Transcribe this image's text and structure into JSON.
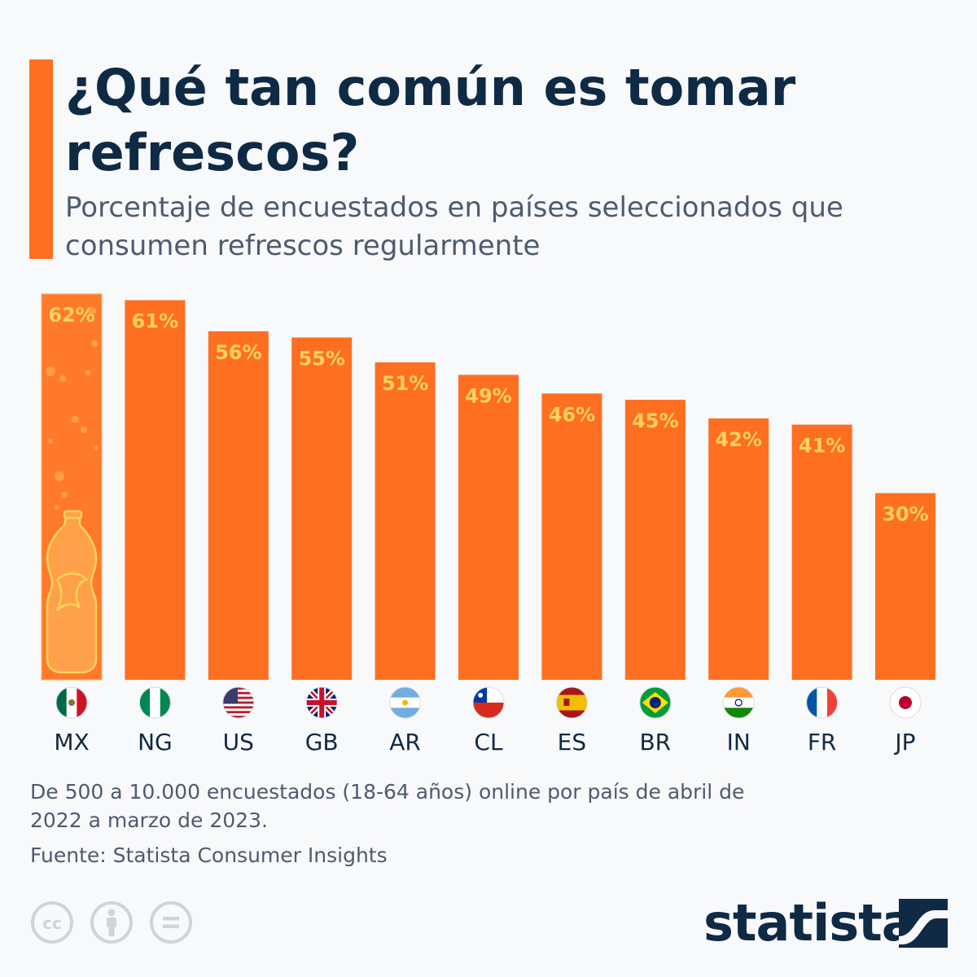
{
  "header": {
    "title": "¿Qué tan común es tomar refrescos?",
    "subtitle": "Porcentaje de encuestados en países seleccionados que consumen refrescos regularmente"
  },
  "chart_data": {
    "type": "bar",
    "categories": [
      "MX",
      "NG",
      "US",
      "GB",
      "AR",
      "CL",
      "ES",
      "BR",
      "IN",
      "FR",
      "JP"
    ],
    "values": [
      62,
      61,
      56,
      55,
      51,
      49,
      46,
      45,
      42,
      41,
      30
    ],
    "value_labels": [
      "62%",
      "61%",
      "56%",
      "55%",
      "51%",
      "49%",
      "46%",
      "45%",
      "42%",
      "41%",
      "30%"
    ],
    "ylim": [
      0,
      62
    ],
    "grid": false,
    "flags": [
      "mexico-flag-icon",
      "nigeria-flag-icon",
      "usa-flag-icon",
      "uk-flag-icon",
      "argentina-flag-icon",
      "chile-flag-icon",
      "spain-flag-icon",
      "brazil-flag-icon",
      "india-flag-icon",
      "france-flag-icon",
      "japan-flag-icon"
    ],
    "colors": {
      "bar": "#ff6f22",
      "bar_highlight": "#ff7a2a",
      "label": "#ffd25a",
      "text": "#0f2a44"
    }
  },
  "footer": {
    "note": "De 500 a 10.000 encuestados (18-64 años) online por país de abril de 2022 a marzo de 2023.",
    "source": "Fuente: Statista Consumer Insights",
    "license_icons": [
      "cc-icon",
      "attribution-icon",
      "no-derivatives-icon"
    ],
    "logo_text": "statista"
  }
}
